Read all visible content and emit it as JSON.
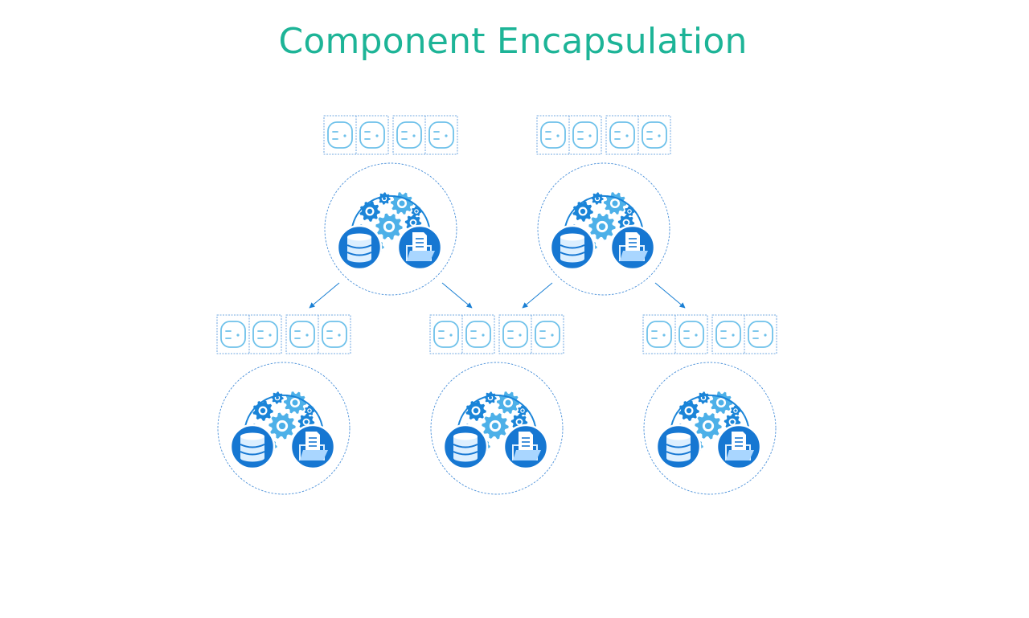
{
  "title": "Component Encapsulation",
  "colors": {
    "title": "#1db497",
    "accent": "#1a7fd4",
    "gear_dark": "#1a84d8",
    "gear_light": "#4db0e8",
    "dashed": "#4a90d9",
    "socket": "#6ec1ea",
    "badge": "#1677d2"
  },
  "icons": {
    "socket": "outlet-icon",
    "gears": "gears-icon",
    "database": "database-icon",
    "folder": "folder-document-icon"
  },
  "components": [
    {
      "id": "parent-a",
      "level": 1
    },
    {
      "id": "parent-b",
      "level": 1
    },
    {
      "id": "child-a",
      "level": 2
    },
    {
      "id": "child-b",
      "level": 2
    },
    {
      "id": "child-c",
      "level": 2
    }
  ],
  "connections": [
    {
      "from": "parent-a",
      "to": "child-a"
    },
    {
      "from": "parent-a",
      "to": "child-b"
    },
    {
      "from": "parent-b",
      "to": "child-b"
    },
    {
      "from": "parent-b",
      "to": "child-c"
    }
  ]
}
